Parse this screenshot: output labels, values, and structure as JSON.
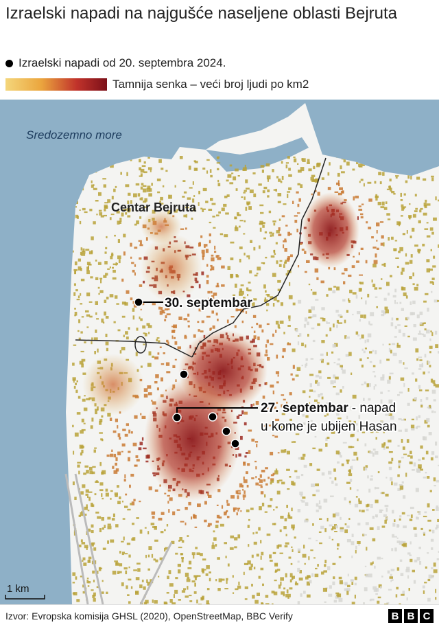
{
  "header": {
    "title": "Izraelski napadi na najgušće naseljene oblasti Bejruta",
    "legend_strikes": "Izraelski napadi od 20. septembra 2024.",
    "legend_density": "Tamnija senka – veći broj ljudi po km2"
  },
  "map": {
    "sea_label": "Sredozemno more",
    "district_label": "Centar Bejruta",
    "annotations": [
      {
        "date": "30. septembar"
      },
      {
        "date": "27. septembar",
        "text": [
          "- napad",
          "u kome je ubijen Hasan"
        ]
      }
    ],
    "scale": "1 km"
  },
  "footer": {
    "source": "Izvor: Evropska komisija GHSL (2020), OpenStreetMap, BBC Verify",
    "logo": [
      "B",
      "B",
      "C"
    ]
  }
}
